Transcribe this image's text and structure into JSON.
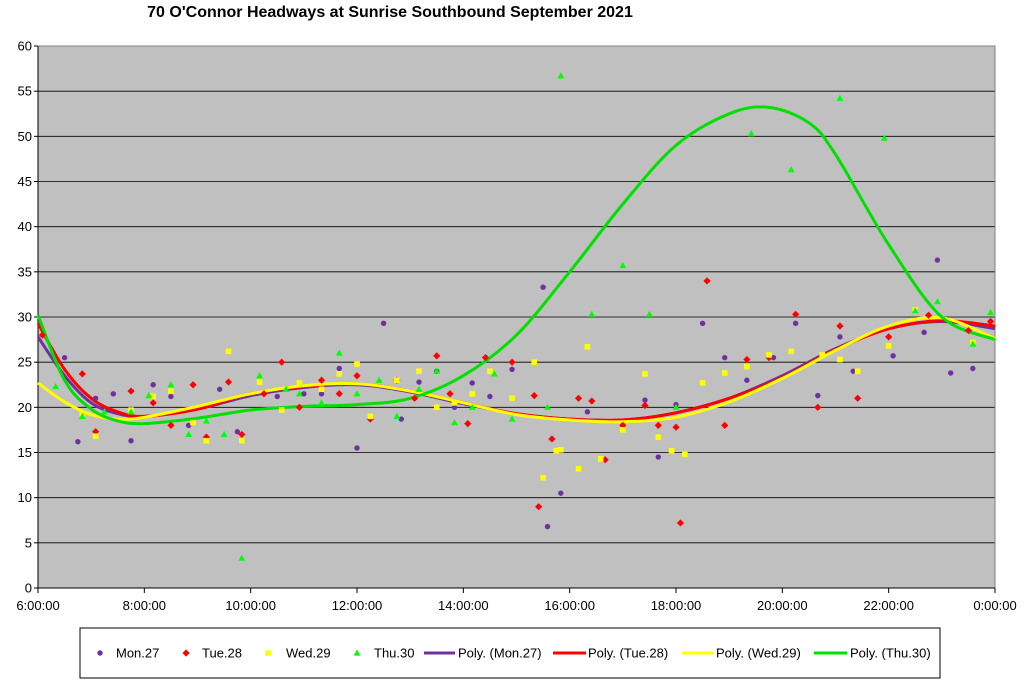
{
  "chart_data": {
    "type": "scatter",
    "title": "70 O'Connor Headways at Sunrise Southbound September 2021",
    "xlabel": "",
    "ylabel": "",
    "x_range": [
      "6:00:00",
      "0:00:00"
    ],
    "xlim_hours": [
      6,
      24
    ],
    "ylim": [
      0,
      60
    ],
    "y_ticks": [
      0,
      5,
      10,
      15,
      20,
      25,
      30,
      35,
      40,
      45,
      50,
      55,
      60
    ],
    "x_ticks": [
      "6:00:00",
      "8:00:00",
      "10:00:00",
      "12:00:00",
      "14:00:00",
      "16:00:00",
      "18:00:00",
      "20:00:00",
      "22:00:00",
      "0:00:00"
    ],
    "grid": true,
    "legend_position": "bottom",
    "background_color": "#C0C0C0",
    "series": [
      {
        "name": "Mon.27",
        "marker": "circle",
        "color": "#7030A0",
        "x": [
          "6:30",
          "6:45",
          "7:05",
          "7:25",
          "7:45",
          "8:10",
          "8:30",
          "8:50",
          "9:10",
          "9:25",
          "9:45",
          "10:30",
          "11:00",
          "11:20",
          "11:40",
          "12:00",
          "12:30",
          "12:50",
          "13:10",
          "13:30",
          "13:50",
          "14:10",
          "14:30",
          "14:55",
          "15:30",
          "15:35",
          "15:50",
          "16:20",
          "17:00",
          "17:25",
          "17:40",
          "18:00",
          "18:30",
          "18:55",
          "19:20",
          "19:50",
          "20:15",
          "20:40",
          "21:05",
          "21:20",
          "22:05",
          "22:40",
          "22:55",
          "23:10",
          "23:35"
        ],
        "y": [
          25.5,
          16.2,
          21.0,
          21.5,
          16.3,
          22.5,
          21.2,
          18.0,
          16.5,
          22.0,
          17.3,
          21.2,
          21.5,
          21.5,
          24.3,
          15.5,
          29.3,
          18.7,
          22.8,
          24.0,
          20.0,
          22.7,
          21.2,
          24.2,
          33.3,
          6.8,
          10.5,
          19.5,
          18.0,
          20.8,
          14.5,
          20.3,
          29.3,
          25.5,
          23.0,
          25.5,
          29.3,
          21.3,
          27.8,
          24.0,
          25.7,
          28.3,
          36.3,
          23.8,
          24.3
        ]
      },
      {
        "name": "Tue.28",
        "marker": "diamond",
        "color": "#FF0000",
        "x": [
          "6:05",
          "6:50",
          "7:05",
          "7:45",
          "8:10",
          "8:30",
          "8:55",
          "9:10",
          "9:35",
          "9:50",
          "10:15",
          "10:35",
          "10:55",
          "11:20",
          "11:40",
          "12:00",
          "12:15",
          "12:45",
          "13:05",
          "13:30",
          "13:45",
          "14:05",
          "14:25",
          "14:55",
          "15:20",
          "15:25",
          "15:40",
          "16:10",
          "16:25",
          "16:40",
          "17:00",
          "17:25",
          "17:40",
          "18:00",
          "18:05",
          "18:35",
          "18:55",
          "19:20",
          "19:45",
          "20:15",
          "20:40",
          "21:05",
          "21:25",
          "22:00",
          "22:45",
          "23:30",
          "23:55"
        ],
        "y": [
          28.0,
          23.7,
          17.3,
          21.8,
          20.5,
          18.0,
          22.5,
          16.7,
          22.8,
          17.0,
          21.5,
          25.0,
          20.0,
          23.0,
          21.5,
          23.5,
          18.7,
          23.0,
          21.0,
          25.7,
          21.5,
          18.2,
          25.5,
          25.0,
          21.3,
          9.0,
          16.5,
          21.0,
          20.7,
          14.2,
          18.0,
          20.2,
          18.0,
          17.8,
          7.2,
          34.0,
          18.0,
          25.3,
          25.5,
          30.3,
          20.0,
          29.0,
          21.0,
          27.8,
          30.2,
          28.5,
          29.5
        ]
      },
      {
        "name": "Wed.29",
        "marker": "square",
        "color": "#FFFF00",
        "x": [
          "6:50",
          "7:05",
          "7:45",
          "8:10",
          "8:30",
          "8:55",
          "9:10",
          "9:35",
          "9:50",
          "10:10",
          "10:35",
          "10:55",
          "11:20",
          "11:40",
          "12:00",
          "12:15",
          "12:45",
          "13:10",
          "13:30",
          "13:50",
          "14:10",
          "14:30",
          "14:55",
          "15:20",
          "15:30",
          "15:45",
          "15:50",
          "16:10",
          "16:20",
          "16:35",
          "17:00",
          "17:25",
          "17:40",
          "17:55",
          "18:10",
          "18:30",
          "18:55",
          "19:20",
          "19:45",
          "20:10",
          "20:45",
          "21:05",
          "21:25",
          "22:00",
          "22:30",
          "23:35"
        ],
        "y": [
          19.3,
          16.8,
          19.7,
          21.2,
          21.8,
          18.3,
          16.3,
          26.2,
          16.3,
          22.8,
          19.7,
          22.7,
          22.0,
          23.7,
          24.8,
          19.0,
          23.0,
          24.0,
          20.0,
          20.5,
          21.5,
          24.0,
          21.0,
          25.0,
          12.2,
          15.2,
          15.3,
          13.2,
          26.7,
          14.3,
          17.5,
          23.7,
          16.7,
          15.2,
          14.8,
          22.7,
          23.8,
          24.5,
          25.8,
          26.2,
          25.8,
          25.3,
          24.0,
          26.8,
          30.8,
          27.2
        ]
      },
      {
        "name": "Thu.30",
        "marker": "triangle",
        "color": "#00FF00",
        "x": [
          "6:20",
          "6:50",
          "7:15",
          "7:45",
          "8:05",
          "8:30",
          "8:50",
          "9:10",
          "9:30",
          "9:50",
          "10:10",
          "10:40",
          "10:55",
          "11:20",
          "11:40",
          "12:00",
          "12:25",
          "12:45",
          "13:10",
          "13:30",
          "13:50",
          "14:10",
          "14:35",
          "14:55",
          "15:35",
          "15:50",
          "16:25",
          "17:00",
          "17:30",
          "18:00",
          "19:25",
          "20:10",
          "21:05",
          "21:55",
          "22:30",
          "22:55",
          "23:35",
          "23:55"
        ],
        "y": [
          22.3,
          19.0,
          19.5,
          19.5,
          21.3,
          22.5,
          17.0,
          18.5,
          17.0,
          3.3,
          23.5,
          22.0,
          21.5,
          20.5,
          26.0,
          21.5,
          23.0,
          19.0,
          22.0,
          24.0,
          18.3,
          20.0,
          23.7,
          18.7,
          20.0,
          56.7,
          30.3,
          35.7,
          30.3,
          20.0,
          50.3,
          46.3,
          54.2,
          49.8,
          30.7,
          31.7,
          27.0,
          30.5
        ]
      },
      {
        "name": "Poly. (Mon.27)",
        "type": "line",
        "color": "#7030A0",
        "x": [
          "6:00",
          "6:30",
          "7:00",
          "7:30",
          "8:00",
          "9:00",
          "10:00",
          "11:00",
          "12:00",
          "13:00",
          "14:00",
          "15:00",
          "16:00",
          "17:00",
          "18:00",
          "19:00",
          "20:00",
          "21:00",
          "22:00",
          "23:00",
          "0:00"
        ],
        "y": [
          27.8,
          23.5,
          20.5,
          19.3,
          19.0,
          19.8,
          21.3,
          22.2,
          22.5,
          21.7,
          20.4,
          19.3,
          18.7,
          18.6,
          19.4,
          21.0,
          23.5,
          26.5,
          28.7,
          29.5,
          28.7
        ]
      },
      {
        "name": "Poly. (Tue.28)",
        "type": "line",
        "color": "#FF0000",
        "x": [
          "6:00",
          "6:30",
          "7:00",
          "7:30",
          "8:00",
          "9:00",
          "10:00",
          "11:00",
          "12:00",
          "13:00",
          "14:00",
          "15:00",
          "16:00",
          "17:00",
          "18:00",
          "19:00",
          "20:00",
          "21:00",
          "22:00",
          "23:00",
          "0:00"
        ],
        "y": [
          29.3,
          24.2,
          21.0,
          19.5,
          19.0,
          19.8,
          21.5,
          22.3,
          22.6,
          21.8,
          20.5,
          19.3,
          18.7,
          18.6,
          19.4,
          21.0,
          23.3,
          26.4,
          28.7,
          29.6,
          29.0
        ]
      },
      {
        "name": "Poly. (Wed.29)",
        "type": "line",
        "color": "#FFFF00",
        "x": [
          "6:00",
          "6:30",
          "7:00",
          "7:30",
          "8:00",
          "9:00",
          "10:00",
          "11:00",
          "12:00",
          "13:00",
          "14:00",
          "15:00",
          "16:00",
          "17:00",
          "18:00",
          "19:00",
          "20:00",
          "21:00",
          "22:00",
          "23:00",
          "0:00"
        ],
        "y": [
          22.7,
          20.6,
          19.2,
          18.7,
          18.9,
          20.1,
          21.5,
          22.4,
          22.6,
          21.8,
          20.5,
          19.2,
          18.6,
          18.4,
          18.9,
          20.6,
          23.2,
          26.3,
          29.0,
          29.9,
          27.6
        ]
      },
      {
        "name": "Poly. (Thu.30)",
        "type": "line",
        "color": "#00E000",
        "x": [
          "6:00",
          "6:30",
          "7:00",
          "7:30",
          "8:00",
          "9:00",
          "10:00",
          "11:00",
          "12:00",
          "13:00",
          "14:00",
          "15:00",
          "16:00",
          "17:00",
          "18:00",
          "19:00",
          "19:45",
          "20:30",
          "21:00",
          "22:00",
          "23:00",
          "0:00"
        ],
        "y": [
          30.2,
          23.0,
          19.8,
          18.5,
          18.2,
          18.8,
          19.7,
          20.1,
          20.3,
          21.0,
          23.5,
          28.0,
          35.0,
          42.5,
          49.0,
          52.5,
          53.2,
          51.5,
          48.0,
          38.0,
          30.0,
          27.5
        ]
      }
    ],
    "legend": [
      "Mon.27",
      "Tue.28",
      "Wed.29",
      "Thu.30",
      "Poly. (Mon.27)",
      "Poly. (Tue.28)",
      "Poly. (Wed.29)",
      "Poly. (Thu.30)"
    ]
  }
}
